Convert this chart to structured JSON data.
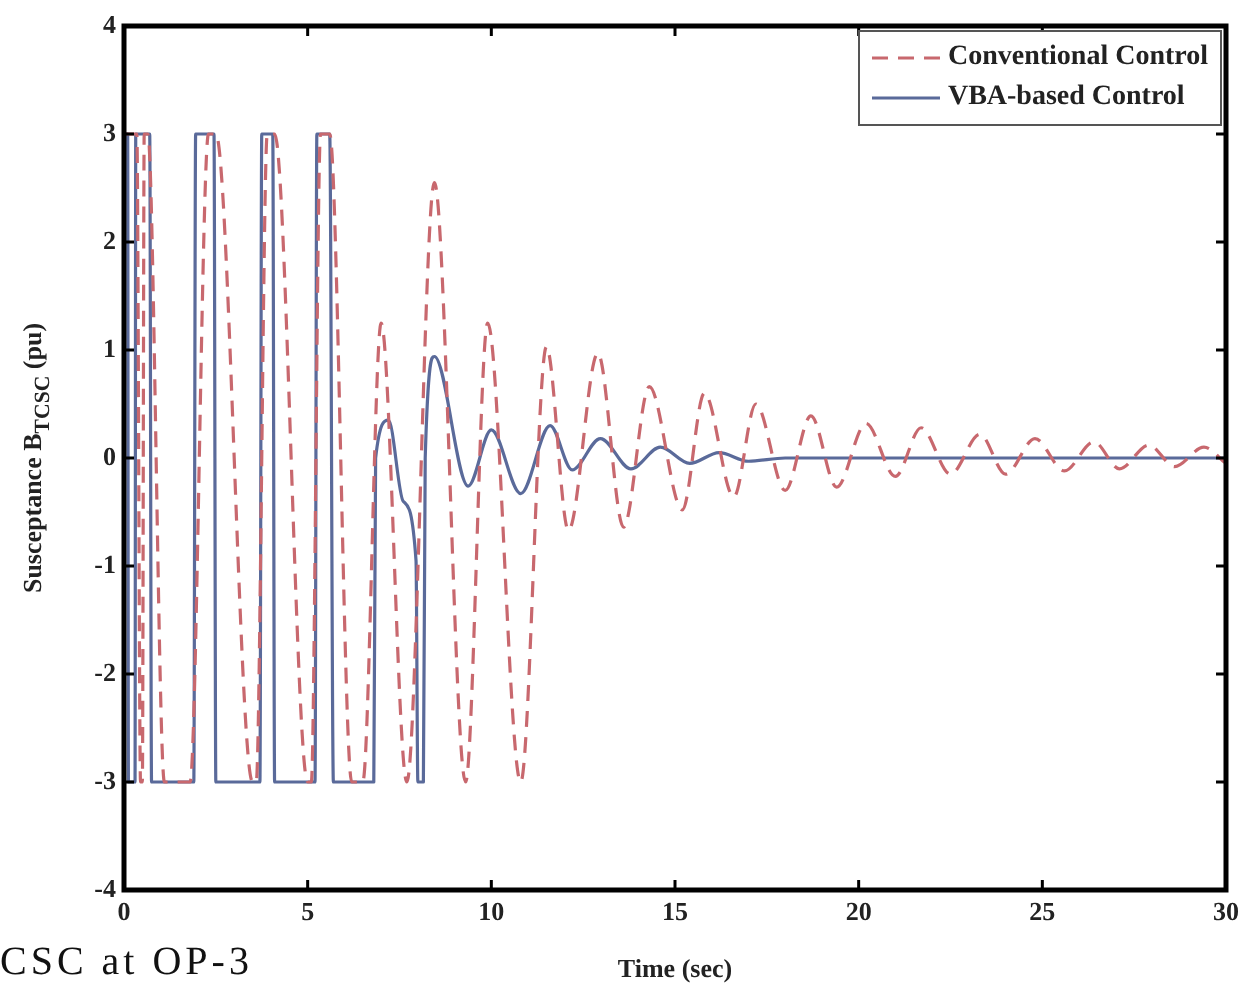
{
  "chart_data": {
    "type": "line",
    "xlabel": "Time (sec)",
    "ylabel": "Susceptance B$_{TCSC}$ (pu)",
    "annotations": [
      "CSC at OP-3"
    ],
    "xlim": [
      0,
      30
    ],
    "xticks": [
      0,
      5,
      10,
      15,
      20,
      25,
      30
    ],
    "ylim": [
      -4,
      4
    ],
    "yticks": [
      -4,
      -3,
      -2,
      -1,
      0,
      1,
      2,
      3,
      4
    ],
    "grid": false,
    "legend": "top right",
    "marker": "none",
    "series": [
      {
        "name": "Conventional Control",
        "color": "#c8686e",
        "line_style": "dashed",
        "x": [
          0,
          0.35,
          0.45,
          0.5,
          0.55,
          0.65,
          1.1,
          1.8,
          2.3,
          2.5,
          3.5,
          3.6,
          3.9,
          4.1,
          5.0,
          5.1,
          5.35,
          5.6,
          6.2,
          6.5,
          7.0,
          7.7,
          8.45,
          9.3,
          9.9,
          10.8,
          11.5,
          12.1,
          12.9,
          13.6,
          14.3,
          15.2,
          15.8,
          16.6,
          17.2,
          18.0,
          18.7,
          19.4,
          20.2,
          21.0,
          21.7,
          22.5,
          23.3,
          24.0,
          24.8,
          25.6,
          26.4,
          27.1,
          27.9,
          28.6,
          29.4,
          30
        ],
        "values": [
          3,
          3,
          -3,
          -3,
          3,
          3,
          -3,
          -3,
          3,
          3,
          -3,
          -3,
          3,
          3,
          -3,
          -3,
          3,
          3,
          -3,
          -3,
          1.25,
          -3,
          2.55,
          -3,
          1.25,
          -3,
          1.03,
          -0.67,
          0.97,
          -0.64,
          0.66,
          -0.48,
          0.6,
          -0.36,
          0.5,
          -0.3,
          0.39,
          -0.27,
          0.32,
          -0.17,
          0.28,
          -0.15,
          0.22,
          -0.15,
          0.18,
          -0.12,
          0.15,
          -0.1,
          0.12,
          -0.08,
          0.1,
          -0.05
        ]
      },
      {
        "name": "VBA-based Control",
        "color": "#5a6a9a",
        "line_style": "solid",
        "x": [
          0,
          0.1,
          0.12,
          0.3,
          0.32,
          0.7,
          0.75,
          1.9,
          1.95,
          2.45,
          2.5,
          3.7,
          3.75,
          4.05,
          4.1,
          5.2,
          5.25,
          5.6,
          5.7,
          6.8,
          6.85,
          7.2,
          7.6,
          7.95,
          8.0,
          8.15,
          8.2,
          8.45,
          9.37,
          10.0,
          10.8,
          11.6,
          12.2,
          12.97,
          13.8,
          14.6,
          15.4,
          16.2,
          17,
          18,
          30
        ],
        "values": [
          3,
          3,
          -3,
          -3,
          3,
          3,
          -3,
          -3,
          3,
          3,
          -3,
          -3,
          3,
          3,
          -3,
          -3,
          3,
          3,
          -3,
          -3,
          0,
          0.35,
          -0.4,
          -0.95,
          -3,
          -3,
          0,
          0.94,
          -0.26,
          0.26,
          -0.33,
          0.3,
          -0.11,
          0.18,
          -0.1,
          0.1,
          -0.05,
          0.05,
          -0.03,
          0,
          0
        ]
      }
    ]
  }
}
